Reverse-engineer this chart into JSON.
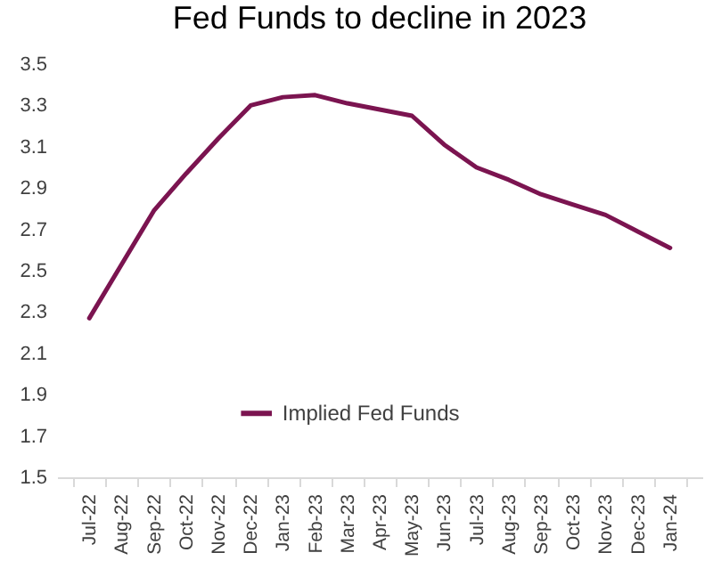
{
  "chart_data": {
    "type": "line",
    "title": "Fed Funds to decline in 2023",
    "categories": [
      "Jul-22",
      "Aug-22",
      "Sep-22",
      "Oct-22",
      "Nov-22",
      "Dec-22",
      "Jan-23",
      "Feb-23",
      "Mar-23",
      "Apr-23",
      "May-23",
      "Jun-23",
      "Jul-23",
      "Aug-23",
      "Sep-23",
      "Oct-23",
      "Nov-23",
      "Dec-23",
      "Jan-24"
    ],
    "series": [
      {
        "name": "Implied Fed Funds",
        "color": "#7b1450",
        "values": [
          2.27,
          2.53,
          2.79,
          2.97,
          3.14,
          3.3,
          3.34,
          3.35,
          3.31,
          3.28,
          3.25,
          3.11,
          3.0,
          2.94,
          2.87,
          2.82,
          2.77,
          2.69,
          2.61
        ]
      }
    ],
    "ylim": [
      1.5,
      3.5
    ],
    "yticks": [
      1.5,
      1.7,
      1.9,
      2.1,
      2.3,
      2.5,
      2.7,
      2.9,
      3.1,
      3.3,
      3.5
    ],
    "grid": false,
    "legend": "bottom",
    "marker": "none",
    "line_style": "solid"
  }
}
